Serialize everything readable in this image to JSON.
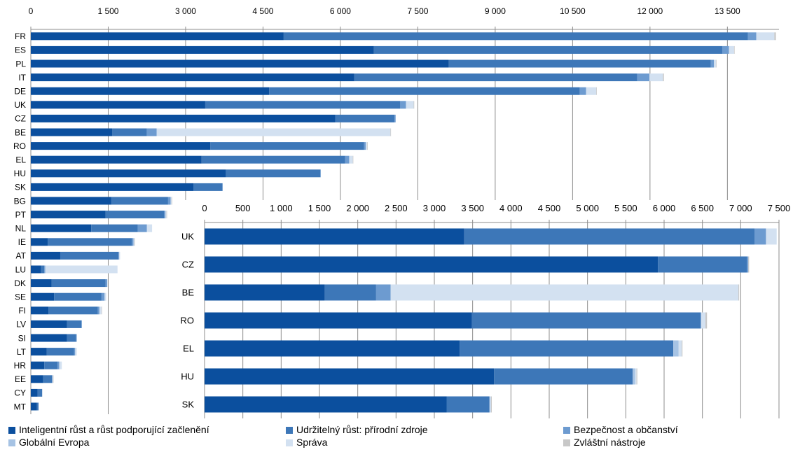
{
  "chart_data": [
    {
      "type": "bar",
      "orientation": "horizontal",
      "stacked": true,
      "categories": [
        "FR",
        "ES",
        "PL",
        "IT",
        "DE",
        "UK",
        "CZ",
        "BE",
        "RO",
        "EL",
        "HU",
        "SK",
        "BG",
        "PT",
        "NL",
        "IE",
        "AT",
        "LU",
        "DK",
        "SE",
        "FI",
        "LV",
        "SI",
        "LT",
        "HR",
        "EE",
        "CY",
        "MT"
      ],
      "xlim": [
        0,
        14500
      ],
      "xticks": [
        "0",
        "1 500",
        "3 000",
        "4 500",
        "6 000",
        "7 500",
        "9 000",
        "10 500",
        "12 000",
        "13 500"
      ],
      "grid": true,
      "series": [
        {
          "name": "Inteligentní růst a růst podporující začlenění",
          "values": [
            4900,
            6650,
            8100,
            6270,
            4620,
            3380,
            5900,
            1580,
            3480,
            3310,
            3780,
            3150,
            1560,
            1450,
            1170,
            330,
            570,
            200,
            400,
            450,
            340,
            700,
            700,
            310,
            260,
            240,
            130,
            120
          ]
        },
        {
          "name": "Udržitelný růst: přírodní zdroje",
          "values": [
            9000,
            6750,
            5080,
            5480,
            6020,
            3780,
            1150,
            670,
            2980,
            2780,
            1830,
            560,
            1100,
            1130,
            900,
            1630,
            1130,
            60,
            1050,
            920,
            960,
            280,
            180,
            530,
            260,
            170,
            90,
            30
          ]
        },
        {
          "name": "Bezpečnost a občanství",
          "values": [
            160,
            130,
            60,
            240,
            120,
            110,
            20,
            190,
            30,
            80,
            10,
            10,
            50,
            30,
            180,
            30,
            10,
            20,
            30,
            60,
            30,
            10,
            10,
            20,
            30,
            10,
            0,
            0
          ]
        },
        {
          "name": "Globální Evropa",
          "values": [
            0,
            0,
            0,
            0,
            0,
            0,
            0,
            0,
            0,
            0,
            0,
            0,
            0,
            0,
            0,
            0,
            0,
            0,
            0,
            0,
            0,
            0,
            0,
            0,
            0,
            0,
            0,
            0
          ]
        },
        {
          "name": "Správa",
          "values": [
            350,
            100,
            40,
            260,
            200,
            150,
            0,
            4530,
            30,
            70,
            0,
            0,
            20,
            20,
            100,
            20,
            20,
            1400,
            10,
            30,
            40,
            0,
            0,
            30,
            50,
            10,
            0,
            0
          ]
        },
        {
          "name": "Zvláštní nástroje",
          "values": [
            30,
            10,
            10,
            20,
            10,
            10,
            0,
            10,
            10,
            10,
            0,
            0,
            10,
            10,
            0,
            10,
            0,
            0,
            0,
            0,
            10,
            0,
            0,
            0,
            0,
            10,
            0,
            0
          ]
        }
      ]
    },
    {
      "type": "bar",
      "orientation": "horizontal",
      "stacked": true,
      "categories": [
        "UK",
        "CZ",
        "BE",
        "RO",
        "EL",
        "HU",
        "SK"
      ],
      "xlim": [
        0,
        7500
      ],
      "xticks": [
        "0",
        "500",
        "1 000",
        "1 500",
        "2 000",
        "2 500",
        "3 000",
        "3 500",
        "4 000",
        "4 500",
        "5 000",
        "5 500",
        "6 000",
        "6 500",
        "7 000",
        "7 500"
      ],
      "grid": true,
      "series": [
        {
          "name": "Inteligentní růst a růst podporující začlenění",
          "values": [
            3390,
            5920,
            1570,
            3490,
            3330,
            3780,
            3160
          ]
        },
        {
          "name": "Udržitelný růst: přírodní zdroje",
          "values": [
            3790,
            1160,
            670,
            2990,
            2790,
            1810,
            560
          ]
        },
        {
          "name": "Bezpečnost a občanství",
          "values": [
            150,
            20,
            190,
            0,
            0,
            0,
            0
          ]
        },
        {
          "name": "Globální Evropa",
          "values": [
            0,
            0,
            0,
            0,
            70,
            30,
            10
          ]
        },
        {
          "name": "Správa",
          "values": [
            140,
            0,
            4540,
            60,
            40,
            20,
            10
          ]
        },
        {
          "name": "Zvláštní nástroje",
          "values": [
            0,
            10,
            10,
            20,
            10,
            10,
            10
          ]
        }
      ]
    }
  ],
  "legend": {
    "items": [
      {
        "label": "Inteligentní růst a růst podporující začlenění",
        "color": "#0b4f9e"
      },
      {
        "label": "Udržitelný růst: přírodní zdroje",
        "color": "#3d77b8"
      },
      {
        "label": "Bezpečnost a občanství",
        "color": "#6d9bd0"
      },
      {
        "label": "Globální Evropa",
        "color": "#a6c3e4"
      },
      {
        "label": "Správa",
        "color": "#d3e1f1"
      },
      {
        "label": "Zvláštní nástroje",
        "color": "#c8c8c8"
      }
    ]
  },
  "colors": [
    "#0b4f9e",
    "#3d77b8",
    "#6d9bd0",
    "#a6c3e4",
    "#d3e1f1",
    "#c8c8c8"
  ]
}
